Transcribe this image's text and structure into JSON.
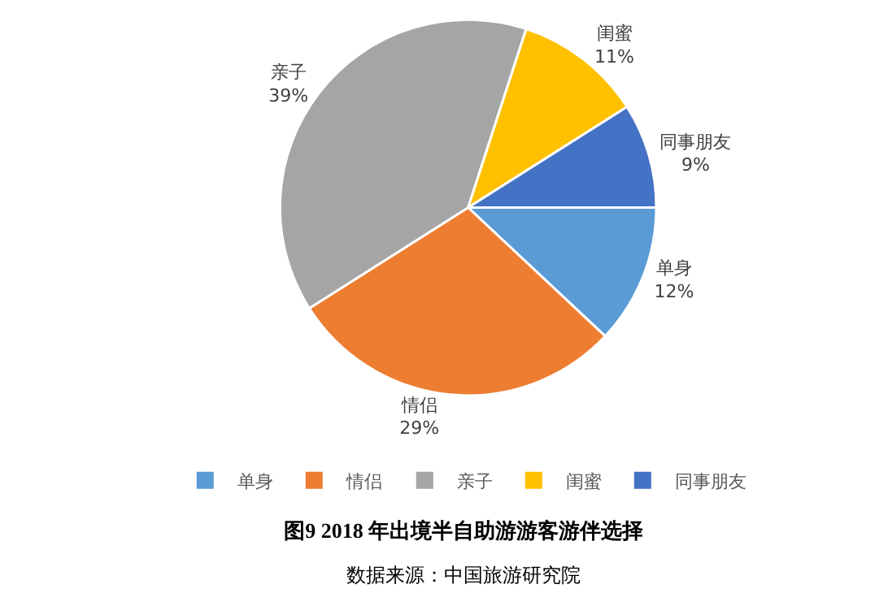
{
  "chart_data": {
    "type": "pie",
    "title": "图9 2018 年出境半自助游游客游伴选择",
    "categories": [
      "单身",
      "情侣",
      "亲子",
      "闺蜜",
      "同事朋友"
    ],
    "values": [
      12,
      29,
      39,
      11,
      9
    ],
    "colors": [
      "#5b9bd5",
      "#ed7d31",
      "#a5a5a5",
      "#ffc000",
      "#4472c4"
    ],
    "value_labels": [
      "12%",
      "29%",
      "39%",
      "11%",
      "9%"
    ],
    "legend": "bottom",
    "annotations": [
      "数据来源：中国旅游研究院"
    ]
  }
}
